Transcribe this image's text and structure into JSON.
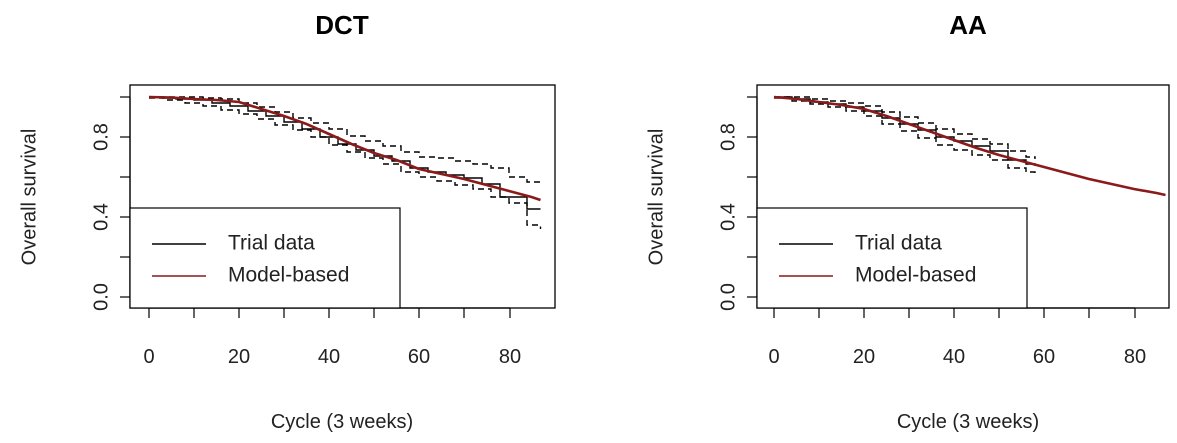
{
  "chart_data": [
    {
      "type": "line",
      "title": "DCT",
      "xlabel": "Cycle (3 weeks)",
      "ylabel": "Overall survival",
      "xlim": [
        0,
        88
      ],
      "ylim": [
        0,
        1
      ],
      "xticks": [
        "0",
        "20",
        "40",
        "60",
        "80"
      ],
      "yticks": [
        "0.0",
        "0.4",
        "0.8"
      ],
      "legend": {
        "position": "bottom-left",
        "entries": [
          {
            "label": "Trial data",
            "color": "#000000"
          },
          {
            "label": "Model-based",
            "color": "#8b1a1a"
          }
        ]
      },
      "series": [
        {
          "name": "Trial data",
          "color": "#000000",
          "style": "step",
          "x": [
            0,
            3,
            6,
            10,
            14,
            18,
            22,
            26,
            30,
            34,
            38,
            42,
            46,
            50,
            54,
            58,
            62,
            66,
            70,
            74,
            78,
            82,
            84,
            87
          ],
          "y": [
            1.0,
            0.995,
            0.99,
            0.985,
            0.97,
            0.955,
            0.93,
            0.905,
            0.875,
            0.84,
            0.8,
            0.765,
            0.735,
            0.705,
            0.68,
            0.645,
            0.625,
            0.61,
            0.595,
            0.565,
            0.5,
            0.5,
            0.44,
            0.44
          ]
        },
        {
          "name": "Model-based",
          "color": "#8b1a1a",
          "style": "line",
          "x": [
            0,
            5,
            10,
            15,
            20,
            25,
            30,
            35,
            40,
            45,
            50,
            55,
            60,
            65,
            70,
            75,
            80,
            85,
            87
          ],
          "y": [
            1.0,
            0.997,
            0.99,
            0.985,
            0.975,
            0.94,
            0.905,
            0.865,
            0.815,
            0.765,
            0.72,
            0.685,
            0.64,
            0.615,
            0.59,
            0.56,
            0.53,
            0.5,
            0.485
          ]
        },
        {
          "color": "#000000",
          "style": "dashed-step",
          "x": [
            0,
            4,
            8,
            12,
            16,
            20,
            24,
            28,
            32,
            36,
            40,
            44,
            48,
            52,
            56,
            60,
            64,
            68,
            72,
            76,
            80,
            84,
            87
          ],
          "y": [
            1.0,
            1.0,
            1.0,
            0.995,
            0.99,
            0.97,
            0.95,
            0.925,
            0.895,
            0.87,
            0.84,
            0.805,
            0.78,
            0.755,
            0.725,
            0.7,
            0.695,
            0.68,
            0.665,
            0.645,
            0.6,
            0.575,
            0.565
          ]
        },
        {
          "color": "#000000",
          "style": "dashed-step",
          "x": [
            0,
            4,
            8,
            12,
            16,
            20,
            24,
            28,
            32,
            36,
            40,
            44,
            48,
            52,
            56,
            60,
            64,
            68,
            72,
            76,
            80,
            84,
            87
          ],
          "y": [
            0.995,
            0.985,
            0.97,
            0.955,
            0.935,
            0.915,
            0.89,
            0.86,
            0.835,
            0.8,
            0.76,
            0.725,
            0.695,
            0.665,
            0.625,
            0.6,
            0.58,
            0.56,
            0.54,
            0.5,
            0.47,
            0.36,
            0.34
          ]
        }
      ]
    },
    {
      "type": "line",
      "title": "AA",
      "xlabel": "Cycle (3 weeks)",
      "ylabel": "Overall survival",
      "xlim": [
        0,
        88
      ],
      "ylim": [
        0,
        1
      ],
      "xticks": [
        "0",
        "20",
        "40",
        "60",
        "80"
      ],
      "yticks": [
        "0.0",
        "0.4",
        "0.8"
      ],
      "legend": {
        "position": "bottom-left",
        "entries": [
          {
            "label": "Trial data",
            "color": "#000000"
          },
          {
            "label": "Model-based",
            "color": "#8b1a1a"
          }
        ]
      },
      "series": [
        {
          "name": "Trial data",
          "color": "#000000",
          "style": "step",
          "x": [
            0,
            4,
            8,
            12,
            16,
            20,
            24,
            28,
            32,
            36,
            40,
            44,
            48,
            52,
            56,
            58
          ],
          "y": [
            1.0,
            0.99,
            0.975,
            0.965,
            0.95,
            0.93,
            0.895,
            0.865,
            0.835,
            0.8,
            0.78,
            0.755,
            0.73,
            0.685,
            0.665,
            0.655
          ]
        },
        {
          "name": "Model-based",
          "color": "#8b1a1a",
          "style": "line",
          "x": [
            0,
            5,
            10,
            15,
            20,
            25,
            30,
            35,
            40,
            45,
            50,
            55,
            60,
            65,
            70,
            75,
            80,
            85,
            87
          ],
          "y": [
            1.0,
            0.99,
            0.975,
            0.96,
            0.94,
            0.905,
            0.865,
            0.825,
            0.785,
            0.745,
            0.71,
            0.68,
            0.65,
            0.62,
            0.59,
            0.565,
            0.54,
            0.52,
            0.51
          ]
        },
        {
          "color": "#000000",
          "style": "dashed-step",
          "x": [
            0,
            4,
            8,
            12,
            16,
            20,
            24,
            28,
            32,
            36,
            40,
            44,
            48,
            52,
            56,
            58
          ],
          "y": [
            1.0,
            1.0,
            0.99,
            0.98,
            0.97,
            0.955,
            0.925,
            0.9,
            0.87,
            0.84,
            0.815,
            0.79,
            0.765,
            0.73,
            0.7,
            0.69
          ]
        },
        {
          "color": "#000000",
          "style": "dashed-step",
          "x": [
            0,
            4,
            8,
            12,
            16,
            20,
            24,
            28,
            32,
            36,
            40,
            44,
            48,
            52,
            56,
            58
          ],
          "y": [
            0.995,
            0.98,
            0.965,
            0.95,
            0.93,
            0.905,
            0.865,
            0.83,
            0.795,
            0.76,
            0.735,
            0.71,
            0.685,
            0.645,
            0.625,
            0.615
          ]
        }
      ]
    }
  ]
}
